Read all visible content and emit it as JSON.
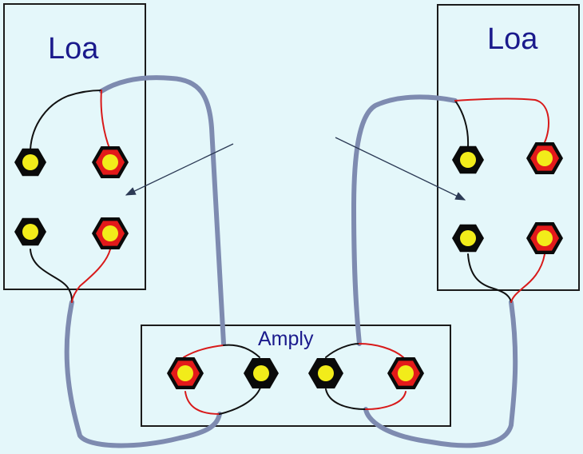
{
  "diagram": {
    "speaker_left": {
      "label": "Loa"
    },
    "speaker_right": {
      "label": "Loa"
    },
    "amplifier": {
      "label": "Amply"
    },
    "colors": {
      "background": "#e4f7fa",
      "box_stroke": "#1b1b1b",
      "label_text": "#1a1a8c",
      "cable": "#7e8bb0",
      "wire_red": "#d81a1a",
      "wire_black": "#111111",
      "terminal_red": "#e31a1a",
      "terminal_black": "#0a0a0a",
      "terminal_core": "#f2ec1a",
      "arrow": "#2c3a55"
    }
  }
}
